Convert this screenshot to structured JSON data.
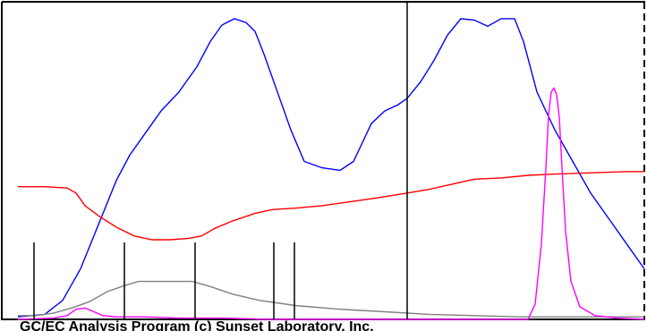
{
  "footer": {
    "copyright": "GC/EC Analysis Program (c) Sunset Laboratory, Inc."
  },
  "colors": {
    "background": "#ffffff",
    "frame": "#000000",
    "blue_trace": "#0000ff",
    "red_trace": "#ff0000",
    "gray_trace": "#808080",
    "magenta_trace": "#ff00ff",
    "marker_lines": "#000000"
  },
  "chart_data": {
    "type": "line",
    "title": "",
    "xlabel": "",
    "ylabel": "",
    "grid": false,
    "series": [
      {
        "color": "blue",
        "x": [
          20,
          50,
          70,
          90,
          110,
          130,
          145,
          165,
          180,
          200,
          220,
          235,
          248,
          262,
          275,
          285,
          295,
          310,
          325,
          340,
          360,
          380,
          395,
          405,
          415,
          430,
          445,
          455,
          470,
          485,
          500,
          515,
          530,
          545,
          560,
          575,
          585,
          600,
          620,
          640,
          660,
          680,
          700,
          720
        ],
        "y": [
          2,
          4,
          15,
          40,
          75,
          110,
          130,
          150,
          165,
          180,
          200,
          220,
          233,
          238,
          235,
          228,
          210,
          180,
          150,
          125,
          120,
          118,
          125,
          140,
          155,
          165,
          170,
          175,
          188,
          205,
          225,
          238,
          237,
          232,
          238,
          238,
          220,
          180,
          150,
          125,
          100,
          80,
          60,
          40
        ]
      },
      {
        "color": "red",
        "x": [
          20,
          50,
          75,
          85,
          95,
          110,
          130,
          150,
          170,
          190,
          210,
          225,
          240,
          260,
          285,
          305,
          330,
          360,
          390,
          420,
          455,
          480,
          505,
          530,
          560,
          590,
          620,
          660,
          700,
          720
        ],
        "y": [
          105,
          105,
          104,
          100,
          90,
          82,
          73,
          66,
          63,
          63,
          64,
          66,
          72,
          78,
          84,
          87,
          88,
          90,
          93,
          96,
          100,
          103,
          107,
          111,
          112,
          114,
          115,
          116,
          117,
          117
        ]
      },
      {
        "color": "gray",
        "x": [
          20,
          40,
          60,
          80,
          100,
          120,
          140,
          155,
          175,
          195,
          215,
          235,
          260,
          290,
          330,
          380,
          430,
          480,
          530,
          580,
          630,
          680,
          720
        ],
        "y": [
          3,
          3,
          5,
          9,
          14,
          22,
          27,
          30,
          30,
          30,
          30,
          26,
          20,
          15,
          11,
          8,
          6,
          4,
          3,
          2,
          2,
          2,
          2
        ]
      },
      {
        "color": "magenta",
        "x": [
          20,
          60,
          75,
          85,
          95,
          105,
          115,
          130,
          160,
          200,
          250,
          300,
          350,
          400,
          450,
          500,
          550,
          590,
          598,
          605,
          610,
          613,
          616,
          619,
          622,
          625,
          628,
          632,
          638,
          648,
          665,
          690,
          720
        ],
        "y": [
          0,
          1,
          3,
          8,
          9,
          6,
          3,
          2,
          2,
          1,
          1,
          0,
          0,
          0,
          0,
          0,
          0,
          0,
          12,
          60,
          120,
          162,
          180,
          183,
          178,
          160,
          120,
          70,
          30,
          10,
          3,
          1,
          0
        ]
      }
    ],
    "markers": [
      {
        "x": 38,
        "y_top": 86
      },
      {
        "x": 139,
        "y_top": 86
      },
      {
        "x": 218,
        "y_top": 86
      },
      {
        "x": 306,
        "y_top": 86
      },
      {
        "x": 329,
        "y_top": 86
      }
    ],
    "cursor": {
      "x": 455,
      "solid": true
    },
    "right_edge": {
      "dashed": true
    },
    "ylim": [
      0,
      250
    ]
  }
}
